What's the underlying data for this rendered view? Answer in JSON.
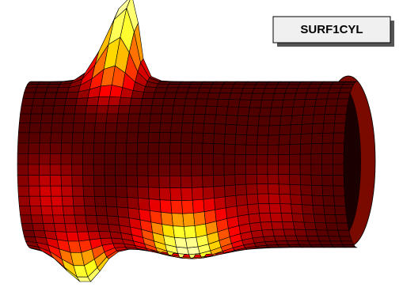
{
  "label": "SURF1CYL"
}
